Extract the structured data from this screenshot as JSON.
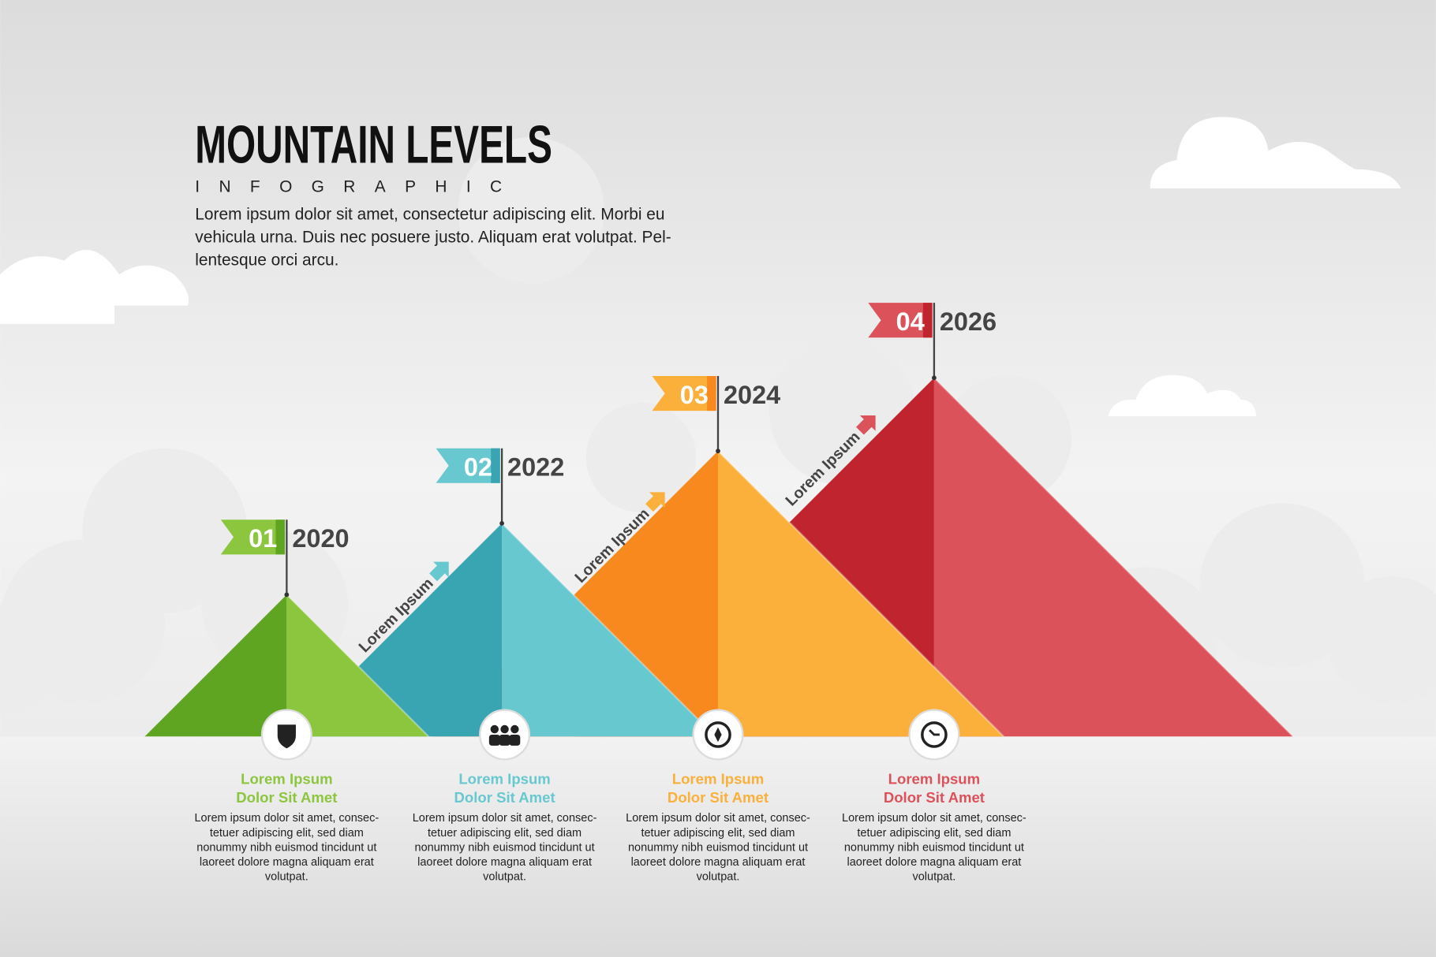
{
  "header": {
    "title": "MOUNTAIN LEVELS",
    "subtitle": "INFOGRAPHIC",
    "description": [
      "Lorem ipsum dolor sit amet, consectetur adipiscing elit. Morbi eu",
      "vehicula urna. Duis nec posuere justo. Aliquam erat volutpat. Pel-",
      "lentesque orci arcu."
    ]
  },
  "arrows": [
    "Lorem Ipsum",
    "Lorem Ipsum",
    "Lorem Ipsum"
  ],
  "levels": [
    {
      "number": "01",
      "year": "2020",
      "color": "#8cc63f",
      "shade": "#5fa521",
      "heading": [
        "Lorem Ipsum",
        "Dolor Sit Amet"
      ],
      "body": [
        "Lorem ipsum dolor sit amet, consec-",
        "tetuer adipiscing elit, sed diam",
        "nonummy nibh euismod tincidunt ut",
        "laoreet dolore magna aliquam erat",
        "volutpat."
      ]
    },
    {
      "number": "02",
      "year": "2022",
      "color": "#67c8d0",
      "shade": "#3aa5b2",
      "heading": [
        "Lorem Ipsum",
        "Dolor Sit Amet"
      ],
      "body": [
        "Lorem ipsum dolor sit amet, consec-",
        "tetuer adipiscing elit, sed diam",
        "nonummy nibh euismod tincidunt ut",
        "laoreet dolore magna aliquam erat",
        "volutpat."
      ]
    },
    {
      "number": "03",
      "year": "2024",
      "color": "#fbb03b",
      "shade": "#f7891f",
      "heading": [
        "Lorem Ipsum",
        "Dolor Sit Amet"
      ],
      "body": [
        "Lorem ipsum dolor sit amet, consec-",
        "tetuer adipiscing elit, sed diam",
        "nonummy nibh euismod tincidunt ut",
        "laoreet dolore magna aliquam erat",
        "volutpat."
      ]
    },
    {
      "number": "04",
      "year": "2026",
      "color": "#dc525a",
      "shade": "#c0242f",
      "heading": [
        "Lorem Ipsum",
        "Dolor Sit Amet"
      ],
      "body": [
        "Lorem ipsum dolor sit amet, consec-",
        "tetuer adipiscing elit, sed diam",
        "nonummy nibh euismod tincidunt ut",
        "laoreet dolore magna aliquam erat",
        "volutpat."
      ]
    }
  ]
}
